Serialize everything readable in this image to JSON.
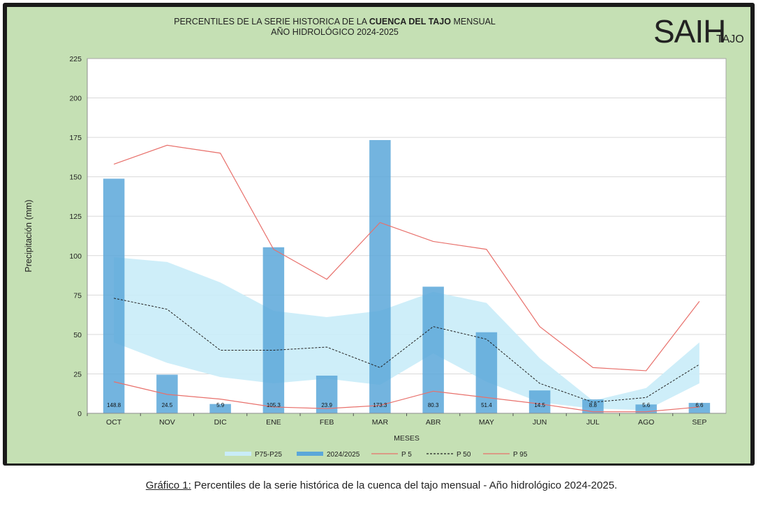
{
  "title": {
    "line1_pre": "PERCENTILES DE LA SERIE HISTORICA DE LA ",
    "line1_bold": "CUENCA DEL TAJO",
    "line1_post": " MENSUAL",
    "line2": "AÑO HIDROLÓGICO 2024-2025"
  },
  "logo": {
    "main": "SAIH",
    "sub": "TAJO"
  },
  "caption": {
    "label": "Gráfico 1:",
    "text": " Percentiles de la serie histórica de la cuenca del tajo mensual - Año hidrológico 2024-2025."
  },
  "colors": {
    "band": "#c9ecf8",
    "bar": "#5ba7d9",
    "p5": "#e8706b",
    "p95": "#e8706b",
    "p50": "#222222",
    "plot_bg": "#ffffff",
    "panel_bg": "#c5e0b4"
  },
  "chart_data": {
    "type": "bar",
    "xlabel": "MESES",
    "ylabel": "Precipitación (mm)",
    "ylim": [
      0,
      225
    ],
    "yticks": [
      0,
      25,
      50,
      75,
      100,
      125,
      150,
      175,
      200,
      225
    ],
    "grid": true,
    "legend_position": "bottom",
    "categories": [
      "OCT",
      "NOV",
      "DIC",
      "ENE",
      "FEB",
      "MAR",
      "ABR",
      "MAY",
      "JUN",
      "JUL",
      "AGO",
      "SEP"
    ],
    "bar_series": {
      "name": "2024/2025",
      "values": [
        148.8,
        24.5,
        5.9,
        105.3,
        23.9,
        173.3,
        80.3,
        51.4,
        14.5,
        8.8,
        5.6,
        6.6
      ],
      "labels": [
        "148.8",
        "24.5",
        "5.9",
        "105.3",
        "23.9",
        "173.3",
        "80.3",
        "51.4",
        "14.5",
        "8.8",
        "5.6",
        "6.6"
      ]
    },
    "band": {
      "name": "P75-P25",
      "upper": [
        99,
        96,
        83,
        65,
        61,
        65,
        77,
        70,
        35,
        8,
        16,
        45
      ],
      "lower": [
        45,
        32,
        23,
        19,
        22,
        18,
        38,
        20,
        7,
        3,
        2,
        19
      ]
    },
    "lines": [
      {
        "name": "P 5",
        "style": "solid",
        "values": [
          20,
          12,
          9,
          4,
          3,
          5,
          14,
          10,
          6,
          1,
          1,
          4
        ]
      },
      {
        "name": "P 50",
        "style": "dashed",
        "values": [
          73,
          66,
          40,
          40,
          42,
          29,
          55,
          47,
          19,
          7,
          10,
          31
        ]
      },
      {
        "name": "P 95",
        "style": "solid",
        "values": [
          158,
          170,
          165,
          104,
          85,
          121,
          109,
          104,
          55,
          29,
          27,
          71
        ]
      }
    ],
    "legend": [
      "P75-P25",
      "2024/2025",
      "P 5",
      "P 50",
      "P 95"
    ]
  }
}
